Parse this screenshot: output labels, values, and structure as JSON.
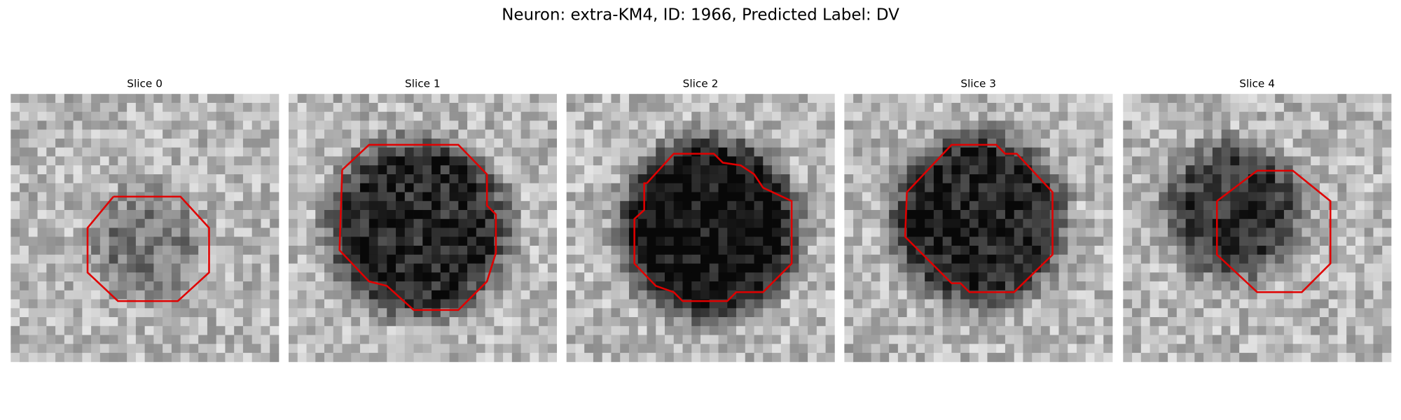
{
  "title": "Neuron: extra-KM4, ID: 1966, Predicted Label: DV",
  "panels": [
    {
      "title": "Slice 0"
    },
    {
      "title": "Slice 1"
    },
    {
      "title": "Slice 2"
    },
    {
      "title": "Slice 3"
    },
    {
      "title": "Slice 4"
    }
  ]
}
